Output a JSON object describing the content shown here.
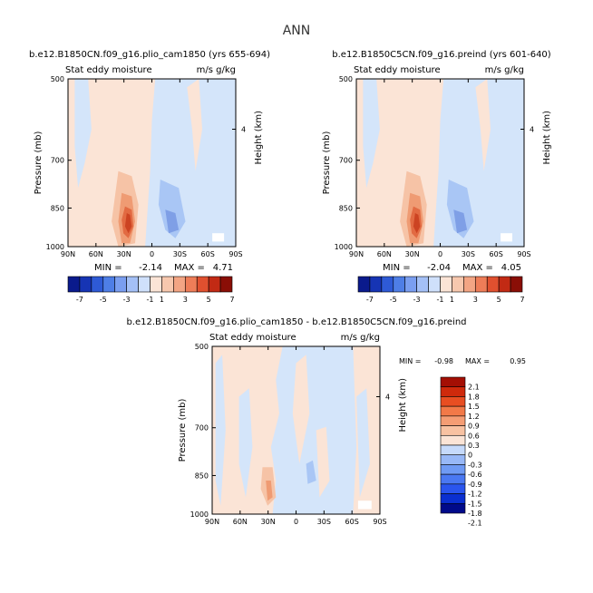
{
  "page": {
    "main_title": "ANN"
  },
  "palettes": {
    "abs": [
      "#0a1a8c",
      "#1634b4",
      "#2e5ad6",
      "#4e7ee6",
      "#7a9ef0",
      "#a4c0f6",
      "#cfe0fb",
      "#fbe4d6",
      "#f7c8ae",
      "#f3a584",
      "#ee7d58",
      "#e0502f",
      "#c22a14",
      "#8a0e06"
    ],
    "diff": [
      "#000a8a",
      "#0a2fd0",
      "#2a55ee",
      "#4a78f2",
      "#6f9af4",
      "#98b8f7",
      "#c6dafb",
      "#fbe4d6",
      "#f8c2a2",
      "#f59d74",
      "#f27948",
      "#e84e22",
      "#cf2a0c",
      "#a40f04"
    ]
  },
  "chart_data": [
    {
      "id": "panel-plio",
      "type": "heatmap",
      "title": "b.e12.B1850CN.f09_g16.plio_cam1850 (yrs 655-694)",
      "left_string": "Stat eddy moisture",
      "right_string": "m/s g/kg",
      "ylabel": "Pressure (mb)",
      "ylabel_right": "Height (km)",
      "x_ticks": [
        "90N",
        "60N",
        "30N",
        "0",
        "30S",
        "60S",
        "90S"
      ],
      "y_ticks": [
        "500",
        "700",
        "850",
        "1000"
      ],
      "y_right_ticks": [
        "4"
      ],
      "xlim": [
        90,
        -90
      ],
      "ylim": [
        1000,
        500
      ],
      "min_label": "MIN =",
      "min_value": "-2.14",
      "max_label": "MAX =",
      "max_value": "4.71",
      "min": -2.14,
      "max": 4.71,
      "colorbar_labels": [
        "-7",
        "-5",
        "-3",
        "-1",
        "1",
        "3",
        "5",
        "7"
      ],
      "levels": [
        -7,
        -6,
        -5,
        -4,
        -3,
        -2,
        -1,
        0,
        1,
        2,
        3,
        4,
        5,
        6,
        7
      ]
    },
    {
      "id": "panel-preind",
      "type": "heatmap",
      "title": "b.e12.B1850C5CN.f09_g16.preind (yrs 601-640)",
      "left_string": "Stat eddy moisture",
      "right_string": "m/s g/kg",
      "ylabel": "Pressure (mb)",
      "ylabel_right": "Height (km)",
      "x_ticks": [
        "90N",
        "60N",
        "30N",
        "0",
        "30S",
        "60S",
        "90S"
      ],
      "y_ticks": [
        "500",
        "700",
        "850",
        "1000"
      ],
      "y_right_ticks": [
        "4"
      ],
      "xlim": [
        90,
        -90
      ],
      "ylim": [
        1000,
        500
      ],
      "min_label": "MIN =",
      "min_value": "-2.04",
      "max_label": "MAX =",
      "max_value": "4.05",
      "min": -2.04,
      "max": 4.05,
      "colorbar_labels": [
        "-7",
        "-5",
        "-3",
        "-1",
        "1",
        "3",
        "5",
        "7"
      ],
      "levels": [
        -7,
        -6,
        -5,
        -4,
        -3,
        -2,
        -1,
        0,
        1,
        2,
        3,
        4,
        5,
        6,
        7
      ]
    },
    {
      "id": "panel-diff",
      "type": "heatmap",
      "title": "b.e12.B1850CN.f09_g16.plio_cam1850 - b.e12.B1850C5CN.f09_g16.preind",
      "left_string": "Stat eddy moisture",
      "right_string": "m/s g/kg",
      "ylabel": "Pressure (mb)",
      "ylabel_right": "Height (km)",
      "x_ticks": [
        "90N",
        "60N",
        "30N",
        "0",
        "30S",
        "60S",
        "90S"
      ],
      "y_ticks": [
        "500",
        "700",
        "850",
        "1000"
      ],
      "y_right_ticks": [
        "4"
      ],
      "xlim": [
        90,
        -90
      ],
      "ylim": [
        1000,
        500
      ],
      "min_label": "MIN =",
      "min_value": "-0.98",
      "max_label": "MAX =",
      "max_value": "0.95",
      "min": -0.98,
      "max": 0.95,
      "colorbar_labels": [
        "2.1",
        "1.8",
        "1.5",
        "1.2",
        "0.9",
        "0.6",
        "0.3",
        "0",
        "-0.3",
        "-0.6",
        "-0.9",
        "-1.2",
        "-1.5",
        "-1.8",
        "-2.1"
      ],
      "levels": [
        -2.1,
        -1.8,
        -1.5,
        -1.2,
        -0.9,
        -0.6,
        -0.3,
        0,
        0.3,
        0.6,
        0.9,
        1.2,
        1.5,
        1.8,
        2.1
      ]
    }
  ]
}
